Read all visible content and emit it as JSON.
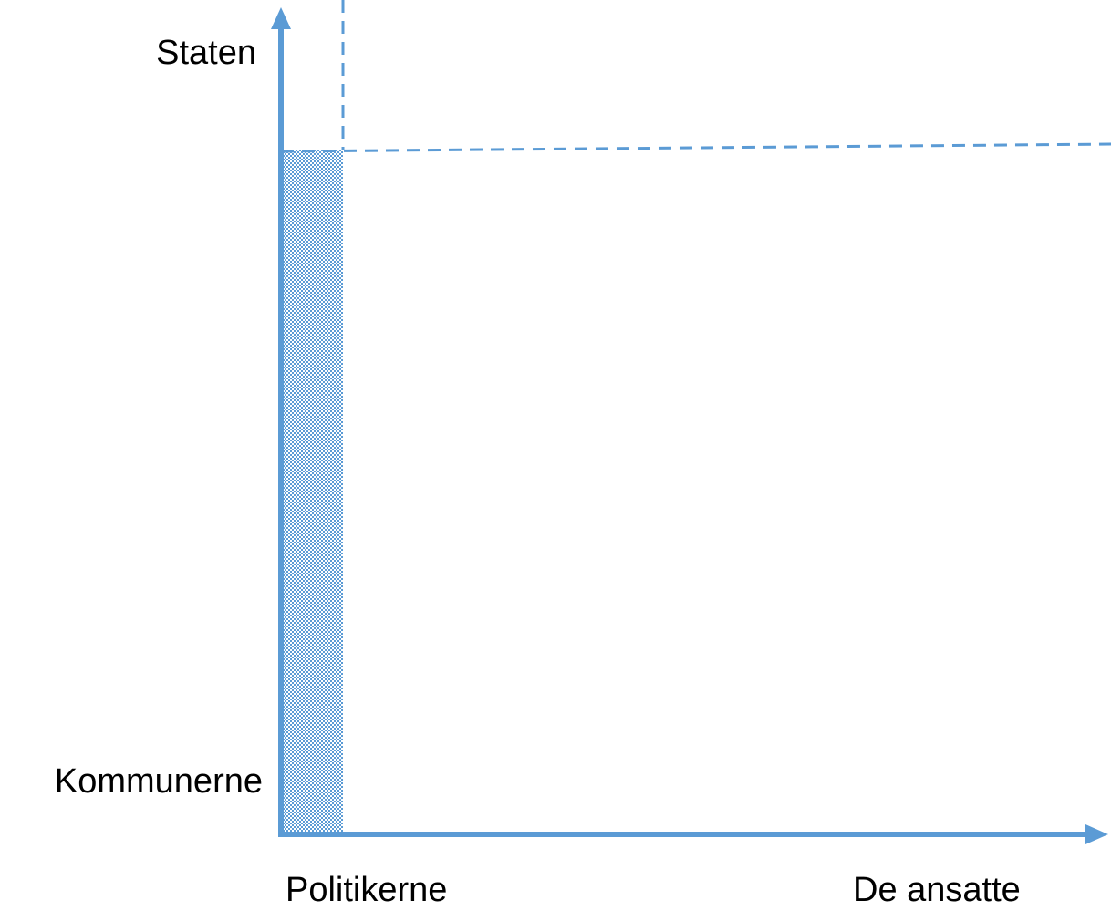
{
  "axes": {
    "y_top": "Staten",
    "y_bottom": "Kommunerne",
    "x_left": "Politikerne",
    "x_right": "De ansatte"
  }
}
